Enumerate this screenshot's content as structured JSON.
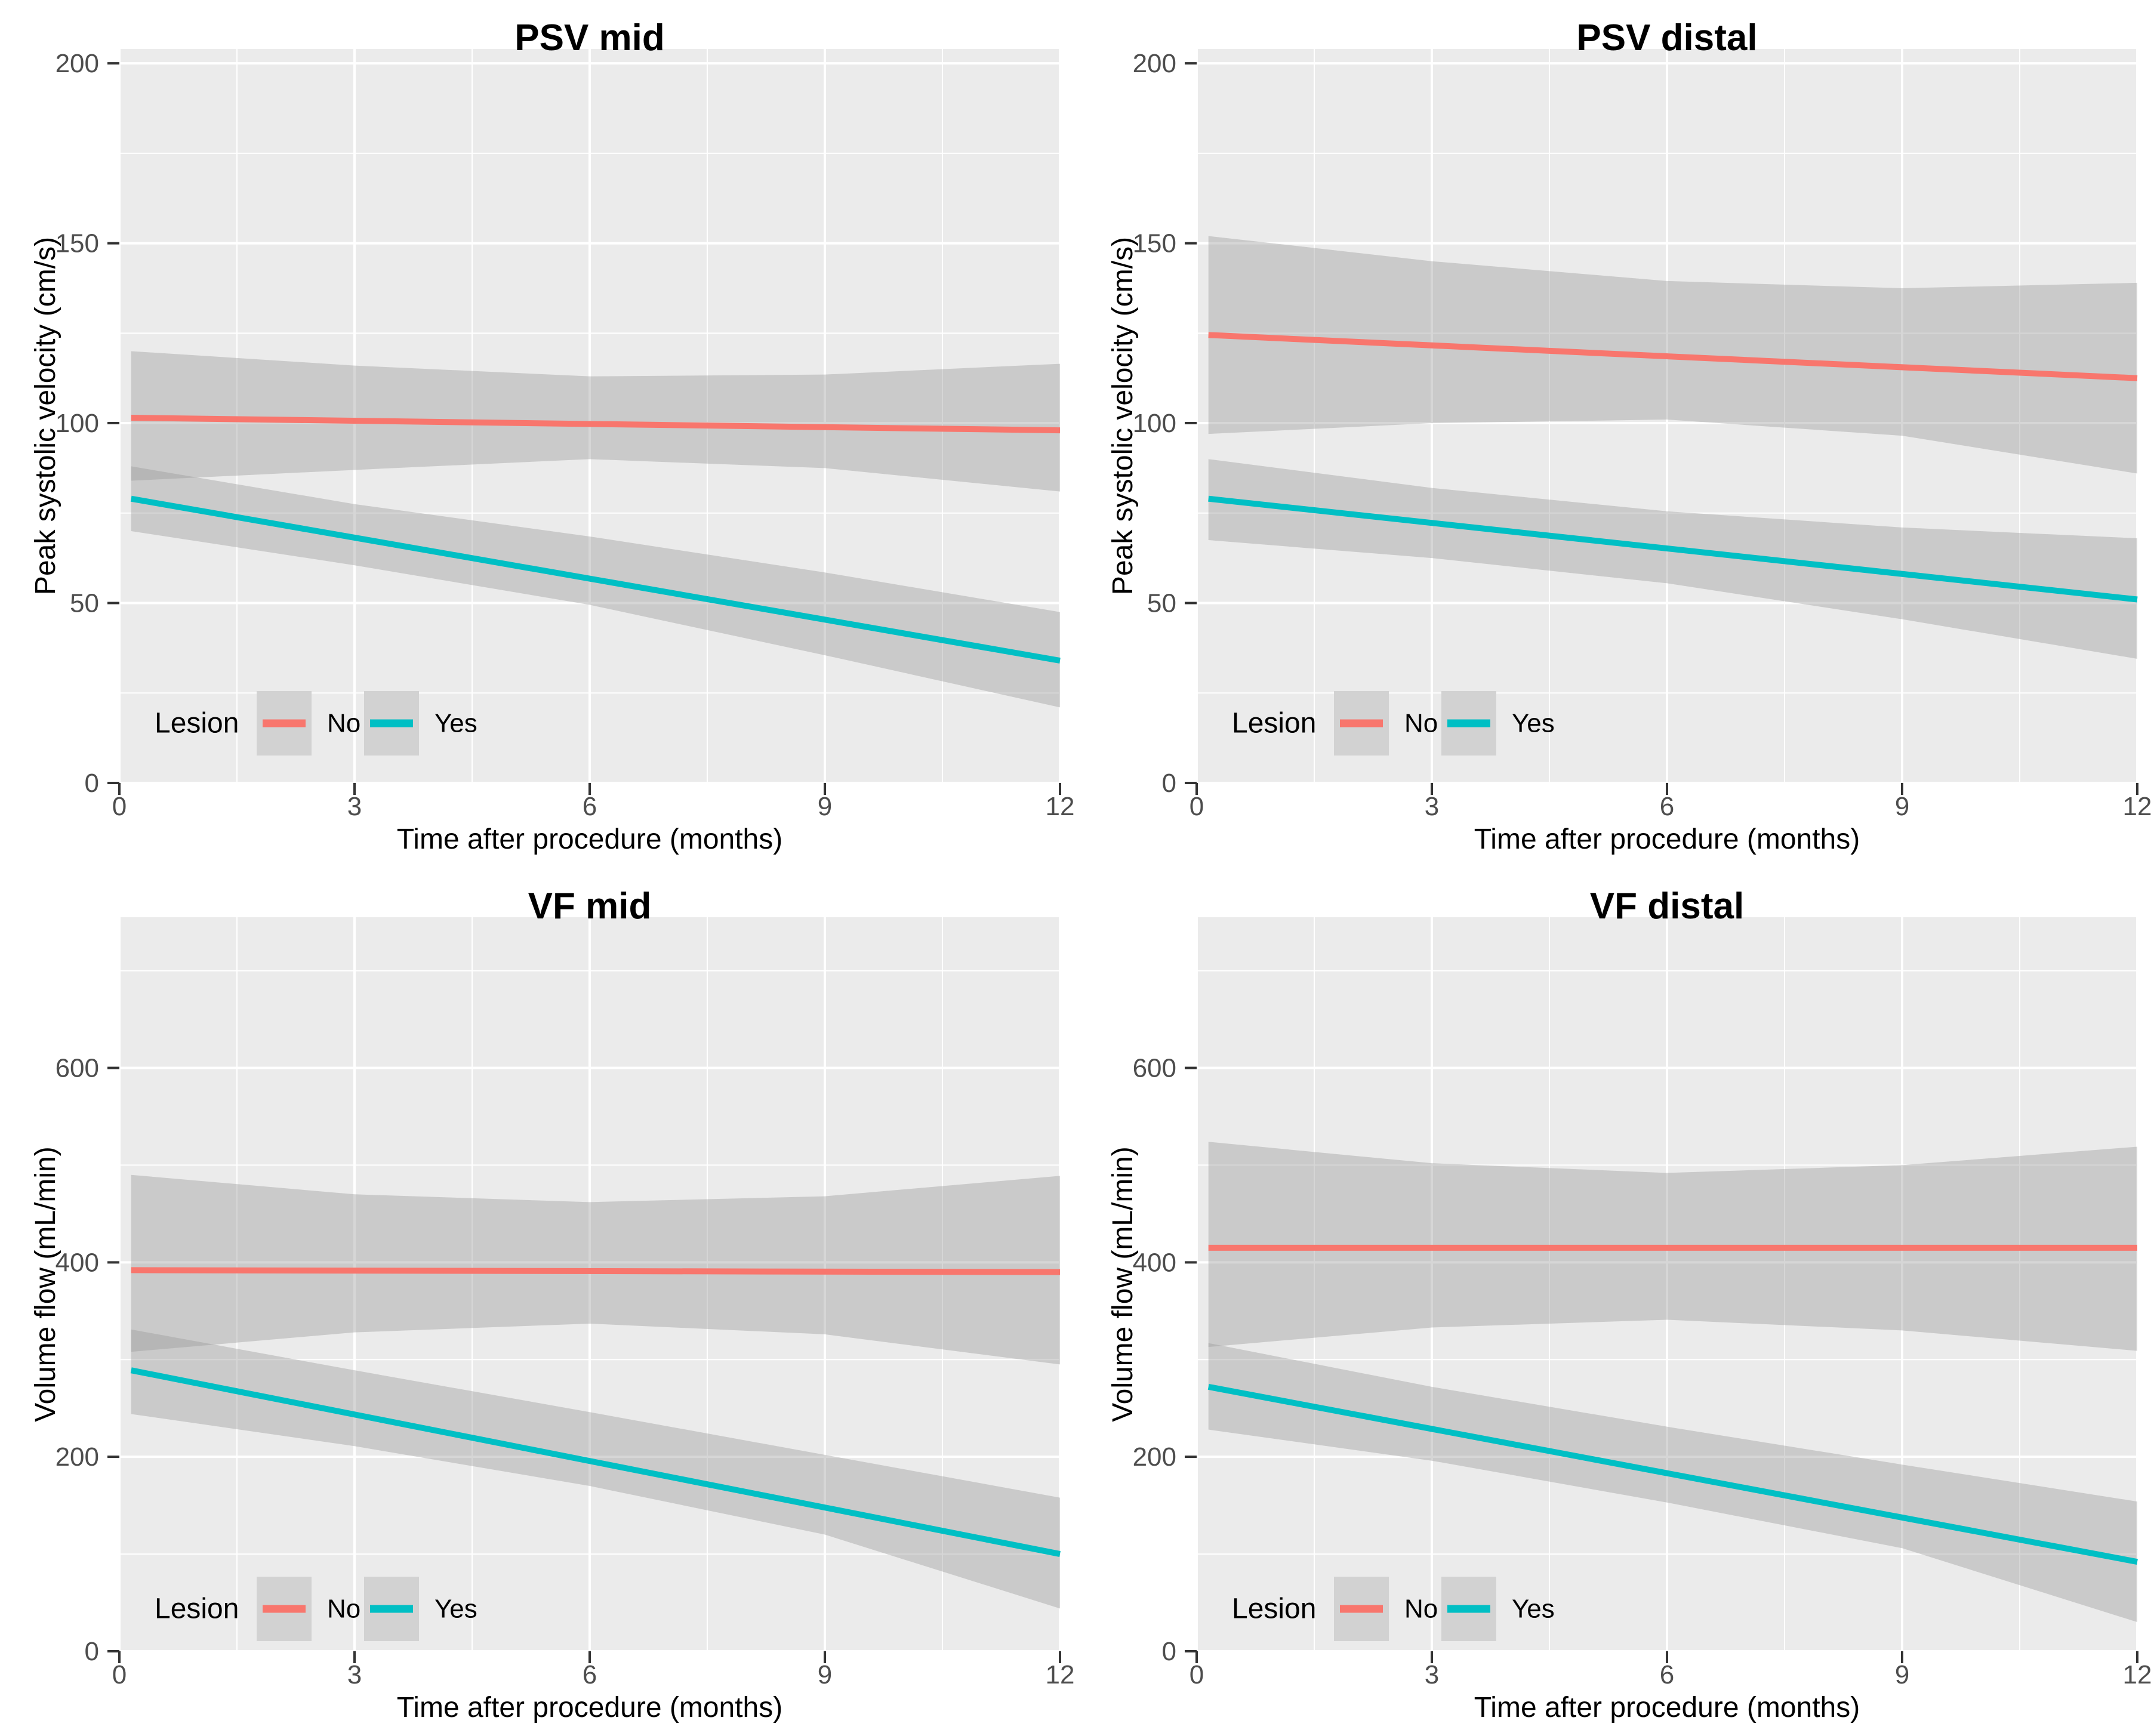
{
  "page": {
    "background": "#FFFFFF"
  },
  "colors": {
    "no": "#F8766D",
    "yes": "#00BFC4",
    "panel_bg": "#EBEBEB",
    "grid": "#FFFFFF",
    "band": "#999999",
    "band_opacity": 0.4,
    "tick_label": "#4D4D4D",
    "tick_mark": "#333333",
    "axis_title": "#000000",
    "plot_title": "#000000",
    "legend_key_bg": "#D2D2D2",
    "legend_text": "#000000"
  },
  "legend": {
    "title": "Lesion",
    "entries": [
      {
        "label": "No",
        "color_key": "no"
      },
      {
        "label": "Yes",
        "color_key": "yes"
      }
    ]
  },
  "chart_data": [
    {
      "key": "psv-mid",
      "type": "line",
      "title": "PSV mid",
      "xlabel": "Time after procedure (months)",
      "ylabel": "Peak systolic velocity (cm/s)",
      "xlim": [
        0,
        12
      ],
      "ylim": [
        0,
        204
      ],
      "xticks": [
        0,
        3,
        6,
        9,
        12
      ],
      "yticks": [
        0,
        50,
        100,
        150,
        200
      ],
      "x_minor": [
        1.5,
        4.5,
        7.5,
        10.5
      ],
      "y_minor": [
        25,
        75,
        125,
        175
      ],
      "grid": true,
      "legend_position": "inside-bottom-left",
      "legend_cy": 1212,
      "series": [
        {
          "name": "No",
          "color_key": "no",
          "x": [
            0.15,
            12
          ],
          "y": [
            101.5,
            98
          ],
          "band": {
            "x": [
              0.15,
              3,
              6,
              9,
              12
            ],
            "upper": [
              120,
              116,
              113,
              113.5,
              116.5
            ],
            "lower": [
              84,
              87,
              90,
              87.5,
              81
            ]
          }
        },
        {
          "name": "Yes",
          "color_key": "yes",
          "x": [
            0.15,
            12
          ],
          "y": [
            79,
            34
          ],
          "band": {
            "x": [
              0.15,
              3,
              6,
              9,
              12
            ],
            "upper": [
              88,
              77.5,
              68.5,
              58.5,
              47.5
            ],
            "lower": [
              70,
              60.5,
              49.5,
              35.5,
              21
            ]
          }
        }
      ]
    },
    {
      "key": "psv-distal",
      "type": "line",
      "title": "PSV distal",
      "xlabel": "Time after procedure (months)",
      "ylabel": "Peak systolic velocity (cm/s)",
      "xlim": [
        0,
        12
      ],
      "ylim": [
        0,
        204
      ],
      "xticks": [
        0,
        3,
        6,
        9,
        12
      ],
      "yticks": [
        0,
        50,
        100,
        150,
        200
      ],
      "x_minor": [
        1.5,
        4.5,
        7.5,
        10.5
      ],
      "y_minor": [
        25,
        75,
        125,
        175
      ],
      "grid": true,
      "legend_position": "inside-bottom-left",
      "legend_cy": 1212,
      "series": [
        {
          "name": "No",
          "color_key": "no",
          "x": [
            0.15,
            12
          ],
          "y": [
            124.5,
            112.5
          ],
          "band": {
            "x": [
              0.15,
              3,
              6,
              9,
              12
            ],
            "upper": [
              152,
              145,
              139.5,
              137.5,
              139
            ],
            "lower": [
              97,
              100,
              101,
              96.5,
              86
            ]
          }
        },
        {
          "name": "Yes",
          "color_key": "yes",
          "x": [
            0.15,
            12
          ],
          "y": [
            79,
            51
          ],
          "band": {
            "x": [
              0.15,
              3,
              6,
              9,
              12
            ],
            "upper": [
              90,
              82,
              75.5,
              71,
              68
            ],
            "lower": [
              67.5,
              62.5,
              55.5,
              45.5,
              34.5
            ]
          }
        }
      ]
    },
    {
      "key": "vf-mid",
      "type": "line",
      "title": "VF mid",
      "xlabel": "Time after procedure (months)",
      "ylabel": "Volume flow (mL/min)",
      "xlim": [
        0,
        12
      ],
      "ylim": [
        0,
        755
      ],
      "xticks": [
        0,
        3,
        6,
        9,
        12
      ],
      "yticks": [
        0,
        200,
        400,
        600
      ],
      "x_minor": [
        1.5,
        4.5,
        7.5,
        10.5
      ],
      "y_minor": [
        100,
        300,
        500,
        700
      ],
      "grid": true,
      "legend_position": "inside-bottom-left",
      "legend_cy": 1241,
      "series": [
        {
          "name": "No",
          "color_key": "no",
          "x": [
            0.15,
            12
          ],
          "y": [
            392,
            390
          ],
          "band": {
            "x": [
              0.15,
              3,
              6,
              9,
              12
            ],
            "upper": [
              490,
              470,
              462,
              468,
              489
            ],
            "lower": [
              308,
              328,
              337,
              326,
              295
            ]
          }
        },
        {
          "name": "Yes",
          "color_key": "yes",
          "x": [
            0.15,
            12
          ],
          "y": [
            289,
            100
          ],
          "band": {
            "x": [
              0.15,
              3,
              6,
              9,
              12
            ],
            "upper": [
              331,
              289,
              246,
              202,
              158
            ],
            "lower": [
              244,
              211,
              170,
              120,
              44
            ]
          }
        }
      ]
    },
    {
      "key": "vf-distal",
      "type": "line",
      "title": "VF distal",
      "xlabel": "Time after procedure (months)",
      "ylabel": "Volume flow (mL/min)",
      "xlim": [
        0,
        12
      ],
      "ylim": [
        0,
        755
      ],
      "xticks": [
        0,
        3,
        6,
        9,
        12
      ],
      "yticks": [
        0,
        200,
        400,
        600
      ],
      "x_minor": [
        1.5,
        4.5,
        7.5,
        10.5
      ],
      "y_minor": [
        100,
        300,
        500,
        700
      ],
      "grid": true,
      "legend_position": "inside-bottom-left",
      "legend_cy": 1241,
      "series": [
        {
          "name": "No",
          "color_key": "no",
          "x": [
            0.15,
            12
          ],
          "y": [
            415,
            415
          ],
          "band": {
            "x": [
              0.15,
              3,
              6,
              9,
              12
            ],
            "upper": [
              524,
              502,
              492,
              500,
              519
            ],
            "lower": [
              313,
              333,
              341,
              330,
              309
            ]
          }
        },
        {
          "name": "Yes",
          "color_key": "yes",
          "x": [
            0.15,
            12
          ],
          "y": [
            272,
            92
          ],
          "band": {
            "x": [
              0.15,
              3,
              6,
              9,
              12
            ],
            "upper": [
              317,
              272,
              231,
              192,
              154
            ],
            "lower": [
              228,
              196,
              153,
              106,
              30
            ]
          }
        }
      ]
    }
  ]
}
